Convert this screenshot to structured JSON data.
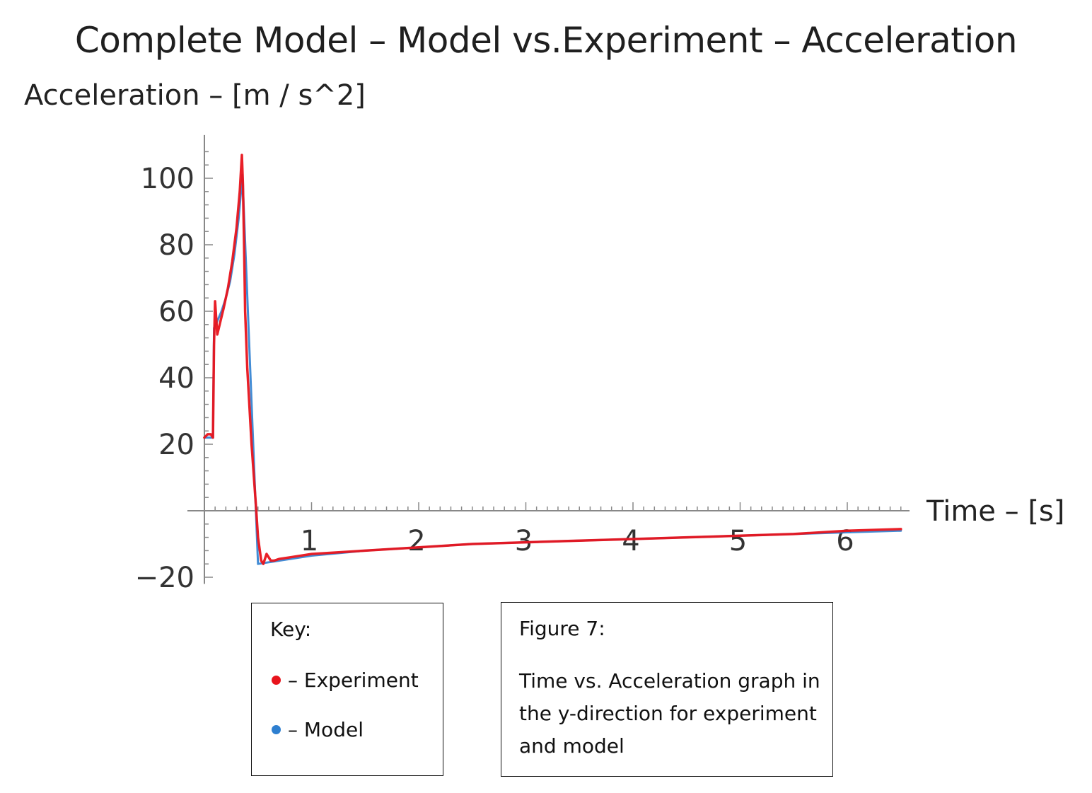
{
  "chart_data": {
    "type": "line",
    "title": "Complete Model – Model vs.Experiment – Acceleration",
    "ylabel": "Acceleration  –  [m / s^2]",
    "xlabel": "Time  –  [s]",
    "xlim": [
      0,
      6.5
    ],
    "ylim": [
      -22,
      113
    ],
    "xticks": [
      1,
      2,
      3,
      4,
      5,
      6
    ],
    "yticks": [
      -20,
      20,
      40,
      60,
      80,
      100
    ],
    "series": [
      {
        "name": "Experiment",
        "color": "#e8141c",
        "x": [
          0.0,
          0.03,
          0.06,
          0.08,
          0.09,
          0.1,
          0.12,
          0.15,
          0.18,
          0.22,
          0.26,
          0.3,
          0.33,
          0.35,
          0.36,
          0.37,
          0.38,
          0.4,
          0.44,
          0.48,
          0.5,
          0.53,
          0.55,
          0.58,
          0.6,
          0.62,
          0.65,
          0.7,
          0.8,
          1.0,
          1.5,
          2.0,
          2.5,
          3.0,
          3.5,
          4.0,
          4.5,
          5.0,
          5.5,
          6.0,
          6.5
        ],
        "y": [
          22,
          23,
          23,
          22,
          50,
          63,
          53,
          57,
          61,
          67,
          75,
          85,
          96,
          107,
          98,
          80,
          60,
          43,
          20,
          2,
          -8,
          -15,
          -16,
          -13,
          -14,
          -15,
          -15,
          -14.5,
          -14,
          -13,
          -12,
          -11,
          -10,
          -9.5,
          -9,
          -8.5,
          -8,
          -7.5,
          -7,
          -6,
          -5.5
        ]
      },
      {
        "name": "Model",
        "color": "#2e7fd0",
        "x": [
          0.0,
          0.08,
          0.09,
          0.12,
          0.16,
          0.2,
          0.24,
          0.28,
          0.32,
          0.355,
          0.5,
          0.7,
          1.0,
          1.5,
          2.0,
          2.5,
          3.0,
          3.5,
          4.0,
          4.5,
          5.0,
          5.5,
          6.0,
          6.5
        ],
        "y": [
          22,
          22,
          55,
          57,
          60,
          64,
          69,
          77,
          88,
          101,
          -16,
          -15,
          -13.5,
          -12,
          -11,
          -10,
          -9.5,
          -9,
          -8.5,
          -8,
          -7.5,
          -7,
          -6.5,
          -6
        ]
      }
    ]
  },
  "key": {
    "title": "Key:",
    "items": [
      {
        "label": "– Experiment",
        "color": "#e8141c"
      },
      {
        "label": "– Model",
        "color": "#2e7fd0"
      }
    ]
  },
  "figure": {
    "title": "Figure 7:",
    "caption": "Time vs. Acceleration graph in the y-direction for experiment and model"
  }
}
